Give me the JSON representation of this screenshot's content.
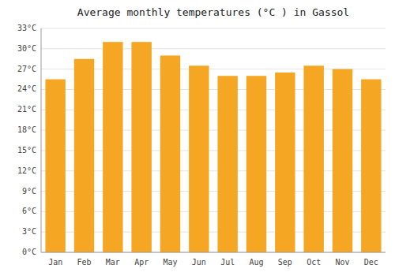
{
  "chart_data": {
    "type": "bar",
    "title": "Average monthly temperatures (°C ) in Gassol",
    "categories": [
      "Jan",
      "Feb",
      "Mar",
      "Apr",
      "May",
      "Jun",
      "Jul",
      "Aug",
      "Sep",
      "Oct",
      "Nov",
      "Dec"
    ],
    "values": [
      25.5,
      28.5,
      31.0,
      31.0,
      29.0,
      27.5,
      26.0,
      26.0,
      26.5,
      27.5,
      27.0,
      25.5
    ],
    "color": "#F5A623",
    "ylim": [
      0,
      33
    ],
    "yticks": [
      {
        "value": 0,
        "label": "0°C"
      },
      {
        "value": 3,
        "label": "3°C"
      },
      {
        "value": 6,
        "label": "6°C"
      },
      {
        "value": 9,
        "label": "9°C"
      },
      {
        "value": 12,
        "label": "12°C"
      },
      {
        "value": 15,
        "label": "15°C"
      },
      {
        "value": 18,
        "label": "18°C"
      },
      {
        "value": 21,
        "label": "21°C"
      },
      {
        "value": 24,
        "label": "24°C"
      },
      {
        "value": 27,
        "label": "27°C"
      },
      {
        "value": 30,
        "label": "30°C"
      },
      {
        "value": 33,
        "label": "33°C"
      }
    ],
    "grid": true
  }
}
